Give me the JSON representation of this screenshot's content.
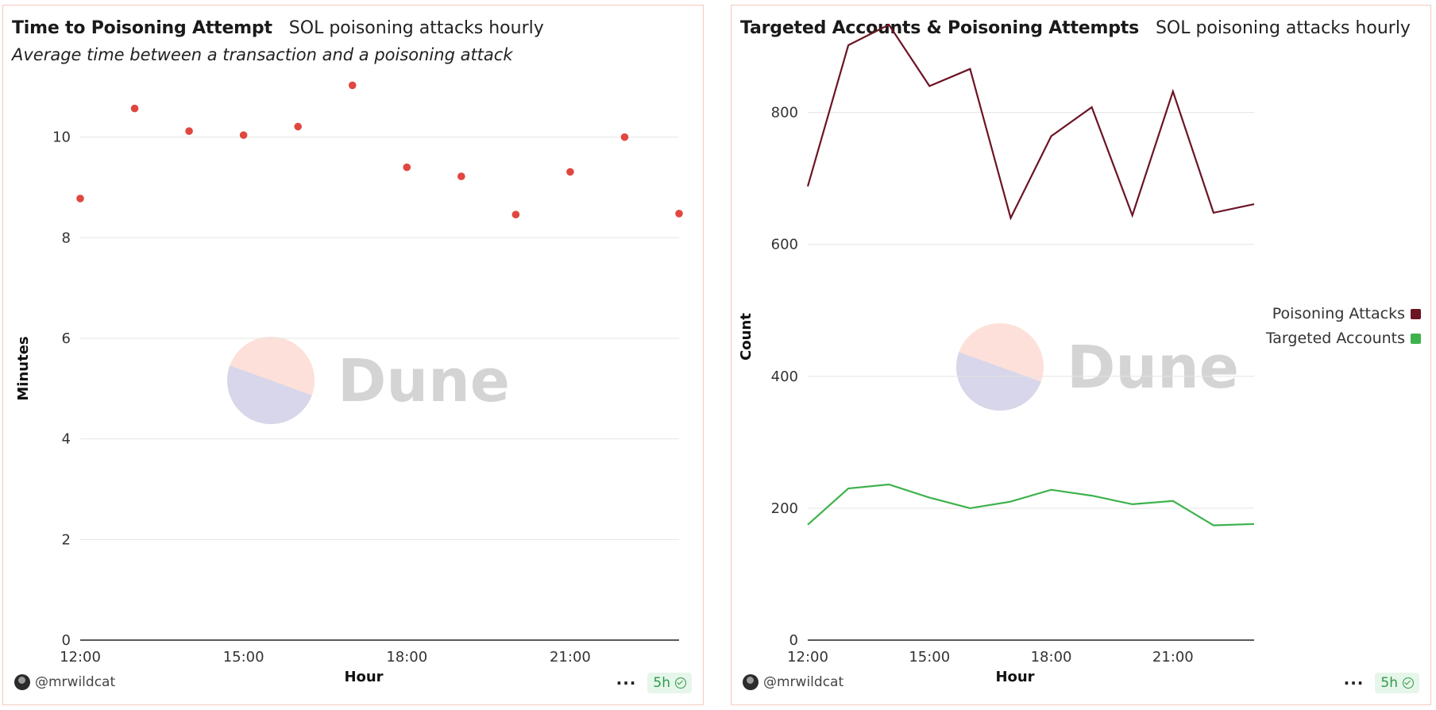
{
  "colors": {
    "scatter": "#e0473f",
    "poisoning": "#6b1424",
    "targeted": "#3db24c",
    "wm_pink": "#fde0d9",
    "wm_lilac": "#d7d6ea"
  },
  "watermark": "Dune",
  "panels": [
    {
      "title": "Time to Poisoning Attempt",
      "subtitle": "SOL poisoning attacks hourly",
      "description": "Average time between a transaction and a poisoning attack",
      "author": "@mrwildcat",
      "refresh_badge": "5h",
      "menu_icon": "more-dots-icon",
      "refresh_icon": "check-circle-icon"
    },
    {
      "title": "Targeted Accounts & Poisoning Attempts",
      "subtitle": "SOL poisoning attacks hourly",
      "author": "@mrwildcat",
      "refresh_badge": "5h",
      "menu_icon": "more-dots-icon",
      "refresh_icon": "check-circle-icon"
    }
  ],
  "chart_data": [
    {
      "type": "scatter",
      "title": "Time to Poisoning Attempt",
      "xlabel": "Hour",
      "ylabel": "Minutes",
      "x_ticks": [
        "12:00",
        "15:00",
        "18:00",
        "21:00"
      ],
      "x_hours": [
        12,
        13,
        14,
        15,
        16,
        17,
        18,
        19,
        20,
        21,
        22,
        23
      ],
      "y_ticks": [
        0,
        2,
        4,
        6,
        8,
        10
      ],
      "ylim": [
        0,
        10.8
      ],
      "xlim": [
        12,
        23
      ],
      "grid": true,
      "series": [
        {
          "values": [
            8.78,
            10.57,
            10.12,
            10.04,
            10.21,
            11.03,
            9.4,
            9.22,
            8.46,
            9.31,
            10.0,
            8.48
          ]
        }
      ]
    },
    {
      "type": "line",
      "title": "Targeted Accounts & Poisoning Attempts",
      "xlabel": "Hour",
      "ylabel": "Count",
      "x_ticks": [
        "12:00",
        "15:00",
        "18:00",
        "21:00"
      ],
      "x_hours": [
        12,
        13,
        14,
        15,
        16,
        17,
        18,
        19,
        20,
        21,
        22,
        23
      ],
      "y_ticks": [
        0,
        200,
        400,
        600,
        800
      ],
      "ylim": [
        0,
        920
      ],
      "xlim": [
        12,
        23
      ],
      "grid": true,
      "legend_position": "right",
      "series": [
        {
          "name": "Poisoning Attacks",
          "values": [
            688,
            902,
            933,
            840,
            866,
            640,
            764,
            808,
            644,
            832,
            648,
            661
          ]
        },
        {
          "name": "Targeted Accounts",
          "values": [
            175,
            230,
            236,
            216,
            200,
            210,
            228,
            219,
            206,
            211,
            174,
            176
          ]
        }
      ]
    }
  ]
}
